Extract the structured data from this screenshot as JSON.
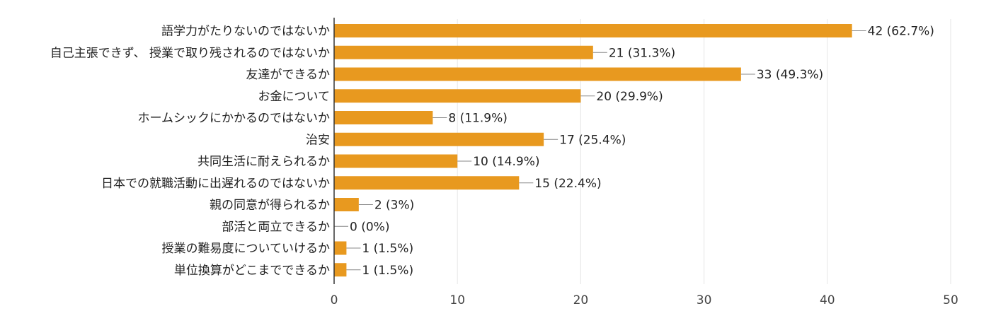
{
  "chart_data": {
    "type": "bar",
    "orientation": "horizontal",
    "title": "",
    "xlabel": "",
    "ylabel": "",
    "xlim": [
      0,
      50
    ],
    "x_ticks": [
      0,
      10,
      20,
      30,
      40,
      50
    ],
    "grid": true,
    "categories": [
      "語学力がたりないのではないか",
      "自己主張できず、 授業で取り残されるのではないか",
      "友達ができるか",
      "お金について",
      "ホームシックにかかるのではないか",
      "治安",
      "共同生活に耐えられるか",
      "日本での就職活動に出遅れるのではないか",
      "親の同意が得られるか",
      "部活と両立できるか",
      "授業の難易度についていけるか",
      "単位換算がどこまでできるか"
    ],
    "values": [
      42,
      21,
      33,
      20,
      8,
      17,
      10,
      15,
      2,
      0,
      1,
      1
    ],
    "value_labels": [
      "42 (62.7%)",
      "21 (31.3%)",
      "33 (49.3%)",
      "20 (29.9%)",
      "8 (11.9%)",
      "17 (25.4%)",
      "10 (14.9%)",
      "15 (22.4%)",
      "2 (3%)",
      "0 (0%)",
      "1 (1.5%)",
      "1 (1.5%)"
    ],
    "colors": {
      "bar": "#E8991F",
      "grid": "#e6e6e6",
      "axis": "#333333",
      "leader": "#888888"
    }
  }
}
